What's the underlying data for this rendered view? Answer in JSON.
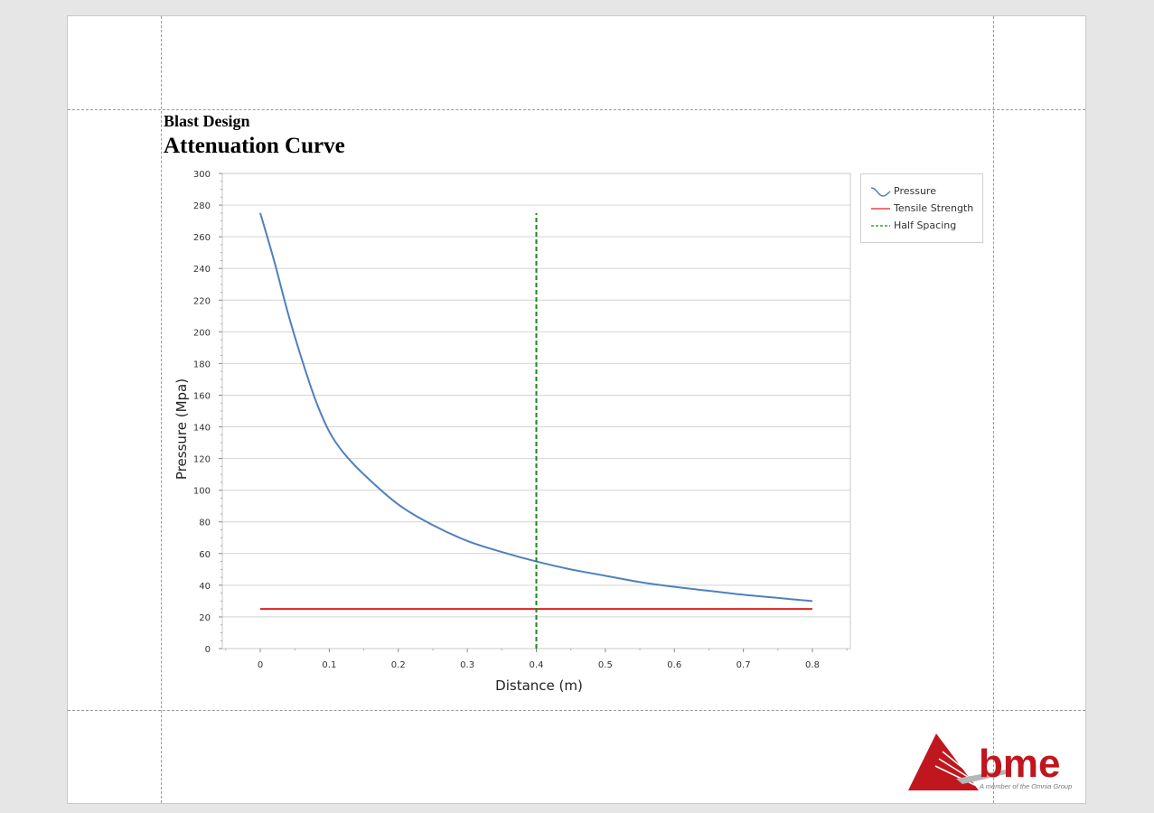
{
  "report": {
    "subtitle": "Blast Design",
    "title": "Attenuation Curve"
  },
  "logo": {
    "wordmark": "bme",
    "tagline": "A member of the Omnia Group"
  },
  "colors": {
    "pressure": "#4f81bd",
    "tensile": "#e02020",
    "half_spacing": "#1a8a1a",
    "logo_red": "#c0161e",
    "logo_grey": "#b5b5b5"
  },
  "chart_data": {
    "type": "line",
    "xlabel": "Distance (m)",
    "ylabel": "Pressure (Mpa)",
    "xlim": [
      -0.055,
      0.855
    ],
    "ylim": [
      0,
      300
    ],
    "x_ticks": [
      0,
      0.1,
      0.2,
      0.3,
      0.4,
      0.5,
      0.6,
      0.7,
      0.8
    ],
    "y_ticks": [
      0,
      20,
      40,
      60,
      80,
      100,
      120,
      140,
      160,
      180,
      200,
      220,
      240,
      260,
      280,
      300
    ],
    "grid": "horizontal",
    "legend_position": "right",
    "series": [
      {
        "name": "Pressure",
        "style": "solid",
        "x": [
          0,
          0.02,
          0.04,
          0.06,
          0.08,
          0.1,
          0.12,
          0.15,
          0.2,
          0.25,
          0.3,
          0.35,
          0.4,
          0.45,
          0.5,
          0.55,
          0.6,
          0.65,
          0.7,
          0.75,
          0.8
        ],
        "y": [
          275,
          245,
          212,
          183,
          157,
          137,
          124,
          110,
          91,
          78,
          68,
          61,
          55,
          50,
          46,
          42,
          39,
          36.5,
          34,
          32,
          30
        ]
      },
      {
        "name": "Tensile Strength",
        "style": "solid",
        "x": [
          0,
          0.8
        ],
        "y": [
          25,
          25
        ]
      },
      {
        "name": "Half Spacing",
        "style": "dashed",
        "x": [
          0.4,
          0.4
        ],
        "y": [
          0,
          275
        ]
      }
    ]
  }
}
